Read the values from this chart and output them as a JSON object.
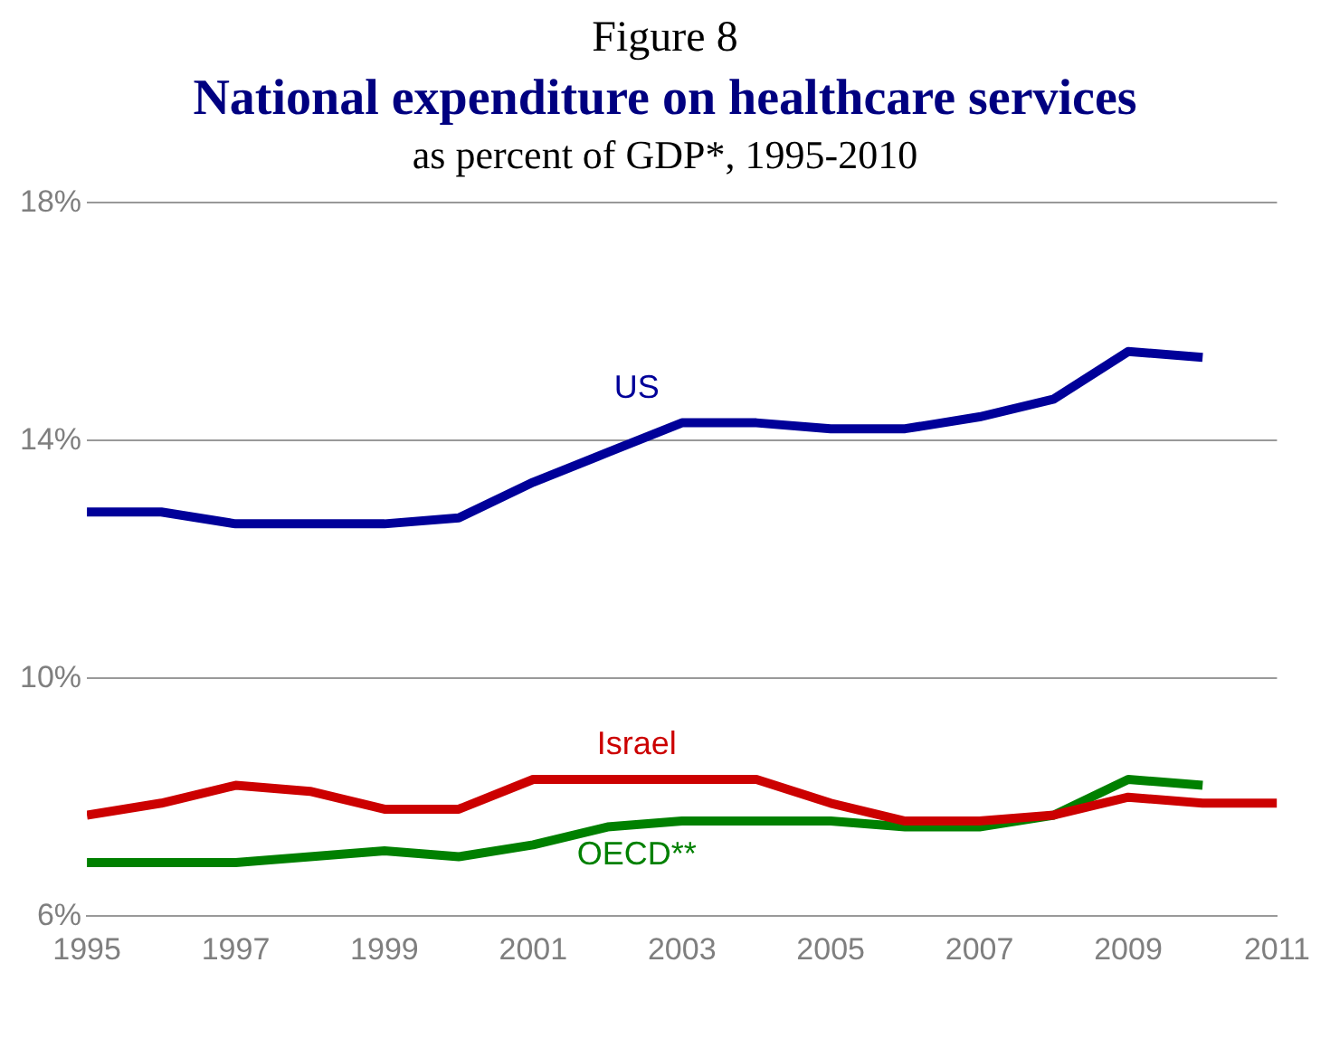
{
  "chart_data": {
    "type": "line",
    "title": "National expenditure on healthcare services",
    "subtitle": "as percent of GDP*, 1995-2010",
    "annotations": [
      "Figure 8"
    ],
    "x": [
      1995,
      1996,
      1997,
      1998,
      1999,
      2000,
      2001,
      2002,
      2003,
      2004,
      2005,
      2006,
      2007,
      2008,
      2009,
      2010
    ],
    "series": [
      {
        "name": "US",
        "color": "#000099",
        "values": [
          12.8,
          12.8,
          12.6,
          12.6,
          12.6,
          12.7,
          13.3,
          13.8,
          14.3,
          14.3,
          14.2,
          14.2,
          14.4,
          14.7,
          15.5,
          15.4
        ]
      },
      {
        "name": "Israel",
        "color": "#cc0000",
        "x": [
          1995,
          1996,
          1997,
          1998,
          1999,
          2000,
          2001,
          2002,
          2003,
          2004,
          2005,
          2006,
          2007,
          2008,
          2009,
          2010,
          2011
        ],
        "values": [
          7.7,
          7.9,
          8.2,
          8.1,
          7.8,
          7.8,
          8.3,
          8.3,
          8.3,
          8.3,
          7.9,
          7.6,
          7.6,
          7.7,
          8.0,
          7.9,
          7.9
        ]
      },
      {
        "name": "OECD**",
        "color": "#008000",
        "values": [
          6.9,
          6.9,
          6.9,
          7.0,
          7.1,
          7.0,
          7.2,
          7.5,
          7.6,
          7.6,
          7.6,
          7.5,
          7.5,
          7.7,
          8.3,
          8.2
        ]
      }
    ],
    "xlim": [
      1995,
      2011
    ],
    "xticks": [
      1995,
      1997,
      1999,
      2001,
      2003,
      2005,
      2007,
      2009,
      2011
    ],
    "ylim": [
      6,
      18
    ],
    "yticks": [
      {
        "value": 6,
        "label": "6%"
      },
      {
        "value": 10,
        "label": "10%"
      },
      {
        "value": 14,
        "label": "14%"
      },
      {
        "value": 18,
        "label": "18%"
      }
    ],
    "grid": "y",
    "legend": false,
    "marker": "none",
    "line_style": "solid"
  }
}
